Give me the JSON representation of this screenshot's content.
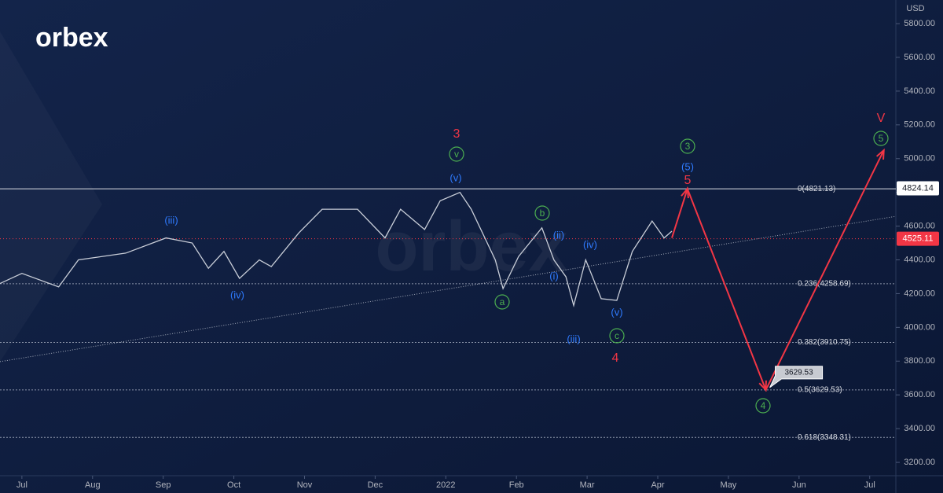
{
  "brand": "orbex",
  "chart_data": {
    "type": "line",
    "currency": "USD",
    "xlim": [
      -0.31,
      12.37
    ],
    "ylim": [
      3121,
      5940
    ],
    "xticks": [
      {
        "value": 0,
        "label": "Jul"
      },
      {
        "value": 1,
        "label": "Aug"
      },
      {
        "value": 2,
        "label": "Sep"
      },
      {
        "value": 3,
        "label": "Oct"
      },
      {
        "value": 4,
        "label": "Nov"
      },
      {
        "value": 5,
        "label": "Dec"
      },
      {
        "value": 6,
        "label": "2022"
      },
      {
        "value": 7,
        "label": "Feb"
      },
      {
        "value": 8,
        "label": "Mar"
      },
      {
        "value": 9,
        "label": "Apr"
      },
      {
        "value": 10,
        "label": "May"
      },
      {
        "value": 11,
        "label": "Jun"
      },
      {
        "value": 12,
        "label": "Jul"
      }
    ],
    "yticks": [
      {
        "value": 3200,
        "label": "3200.00"
      },
      {
        "value": 3400,
        "label": "3400.00"
      },
      {
        "value": 3600,
        "label": "3600.00"
      },
      {
        "value": 3800,
        "label": "3800.00"
      },
      {
        "value": 4000,
        "label": "4000.00"
      },
      {
        "value": 4200,
        "label": "4200.00"
      },
      {
        "value": 4400,
        "label": "4400.00"
      },
      {
        "value": 4600,
        "label": "4600.00"
      },
      {
        "value": 4800,
        "label": "4800.00"
      },
      {
        "value": 5000,
        "label": "5000.00"
      },
      {
        "value": 5200,
        "label": "5200.00"
      },
      {
        "value": 5400,
        "label": "5400.00"
      },
      {
        "value": 5600,
        "label": "5600.00"
      },
      {
        "value": 5800,
        "label": "5800.00"
      }
    ],
    "x": [
      -0.31,
      0,
      0.52,
      0.8,
      1.47,
      2.04,
      2.41,
      2.64,
      2.86,
      3.08,
      3.36,
      3.53,
      3.92,
      4.25,
      4.75,
      5.14,
      5.36,
      5.7,
      5.92,
      6.2,
      6.36,
      6.7,
      6.81,
      7.03,
      7.36,
      7.53,
      7.7,
      7.81,
      7.98,
      8.2,
      8.42,
      8.64,
      8.92,
      9.09,
      9.2
    ],
    "series": [
      {
        "color": "#c9ced8",
        "values": [
          4260,
          4320,
          4240,
          4400,
          4440,
          4530,
          4500,
          4350,
          4450,
          4290,
          4400,
          4360,
          4560,
          4700,
          4700,
          4530,
          4700,
          4580,
          4750,
          4800,
          4700,
          4400,
          4230,
          4420,
          4590,
          4400,
          4300,
          4130,
          4400,
          4170,
          4160,
          4450,
          4630,
          4530,
          4570
        ]
      }
    ],
    "projection": {
      "color": "#f23645",
      "x": [
        9.2,
        9.42,
        10.53,
        12.2
      ],
      "values": [
        4530,
        4821.13,
        3629.53,
        5050
      ]
    },
    "trendline": {
      "color": "#c9ced8",
      "x": [
        -0.31,
        12.37
      ],
      "values": [
        3797,
        4658
      ]
    },
    "fib_levels": [
      {
        "value": 4821.13,
        "label": "0(4821.13)"
      },
      {
        "value": 4258.69,
        "label": "0.236(4258.69)"
      },
      {
        "value": 3910.75,
        "label": "0.382(3910.75)"
      },
      {
        "value": 3629.53,
        "label": "0.5(3629.53)"
      },
      {
        "value": 3348.31,
        "label": "0.618(3348.31)"
      }
    ],
    "high_line": {
      "value": 4824.14,
      "label": "4824.14"
    },
    "last_price": {
      "value": 4525.11,
      "label": "4525.11",
      "color": "#f23645"
    },
    "callout": {
      "value": 3629.53,
      "label": "3629.53"
    },
    "wave_labels": [
      {
        "text": "3",
        "color": "#f23645"
      },
      {
        "text": "v",
        "color": "#4caf50"
      },
      {
        "text": "(v)",
        "color": "#2f7bff"
      },
      {
        "text": "(iii)",
        "color": "#2f7bff"
      },
      {
        "text": "(iv)",
        "color": "#2f7bff"
      },
      {
        "text": "b",
        "color": "#4caf50"
      },
      {
        "text": "(ii)",
        "color": "#2f7bff"
      },
      {
        "text": "(iv)",
        "color": "#2f7bff"
      },
      {
        "text": "(i)",
        "color": "#2f7bff"
      },
      {
        "text": "a",
        "color": "#4caf50"
      },
      {
        "text": "(iii)",
        "color": "#2f7bff"
      },
      {
        "text": "(v)",
        "color": "#2f7bff"
      },
      {
        "text": "c",
        "color": "#4caf50"
      },
      {
        "text": "4",
        "color": "#f23645"
      },
      {
        "text": "3",
        "color": "#4caf50"
      },
      {
        "text": "(5)",
        "color": "#2f7bff"
      },
      {
        "text": "5",
        "color": "#f23645"
      },
      {
        "text": "V",
        "color": "#f23645"
      },
      {
        "text": "5",
        "color": "#4caf50"
      },
      {
        "text": "4",
        "color": "#4caf50"
      }
    ]
  }
}
